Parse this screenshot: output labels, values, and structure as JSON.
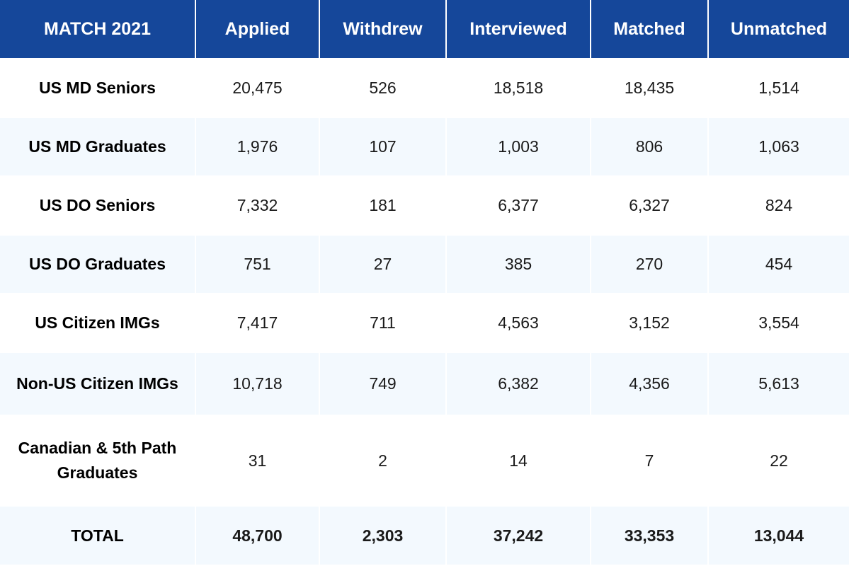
{
  "chart_data": {
    "type": "table",
    "columns": [
      "MATCH 2021",
      "Applied",
      "Withdrew",
      "Interviewed",
      "Matched",
      "Unmatched"
    ],
    "rows": [
      {
        "label": "US MD Seniors",
        "values": [
          "20,475",
          "526",
          "18,518",
          "18,435",
          "1,514"
        ]
      },
      {
        "label": "US MD Graduates",
        "values": [
          "1,976",
          "107",
          "1,003",
          "806",
          "1,063"
        ]
      },
      {
        "label": "US DO Seniors",
        "values": [
          "7,332",
          "181",
          "6,377",
          "6,327",
          "824"
        ]
      },
      {
        "label": "US DO Graduates",
        "values": [
          "751",
          "27",
          "385",
          "270",
          "454"
        ]
      },
      {
        "label": "US Citizen IMGs",
        "values": [
          "7,417",
          "711",
          "4,563",
          "3,152",
          "3,554"
        ]
      },
      {
        "label": "Non-US Citizen IMGs",
        "values": [
          "10,718",
          "749",
          "6,382",
          "4,356",
          "5,613"
        ]
      },
      {
        "label": "Canadian & 5th Path Graduates",
        "values": [
          "31",
          "2",
          "14",
          "7",
          "22"
        ]
      },
      {
        "label": "TOTAL",
        "values": [
          "48,700",
          "2,303",
          "37,242",
          "33,353",
          "13,044"
        ]
      }
    ]
  },
  "colors": {
    "header_bg": "#15479a",
    "header_text": "#ffffff",
    "row_tint": "#f3f9fe",
    "row_white": "#ffffff"
  }
}
